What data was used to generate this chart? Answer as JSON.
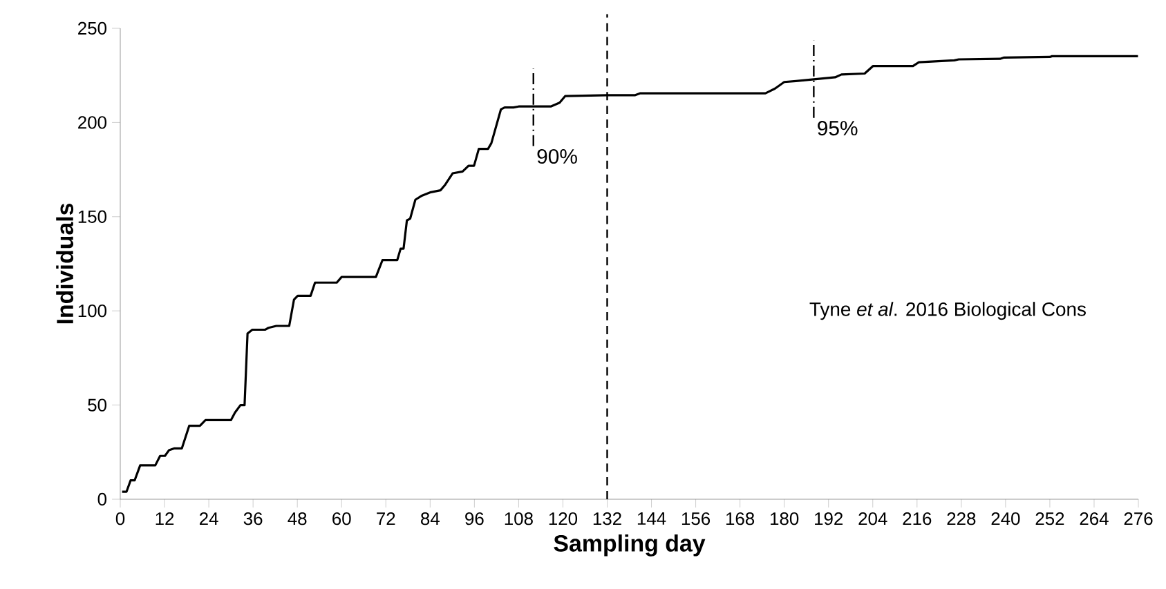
{
  "chart_data": {
    "type": "line",
    "xlabel": "Sampling day",
    "ylabel": "Individuals",
    "color": "#000000",
    "x": [
      0.5,
      1.7,
      2.8,
      3.9,
      5.4,
      9.5,
      10.8,
      12.1,
      13.2,
      14.7,
      16.7,
      18.7,
      21.6,
      23.1,
      30,
      31.1,
      32.6,
      33.7,
      34.5,
      35.8,
      39.3,
      40.2,
      42.3,
      45.8,
      47.1,
      48.1,
      51.6,
      52.8,
      58.7,
      60,
      69.3,
      71.1,
      75.1,
      76,
      76.8,
      77.7,
      78.6,
      80,
      81.6,
      82.9,
      84.2,
      86.8,
      88.1,
      90.1,
      92.8,
      94.4,
      95.9,
      97.2,
      99.7,
      100.6,
      103.2,
      104.2,
      106.6,
      108,
      116.7,
      119.1,
      120.6,
      132,
      139.6,
      141,
      174.9,
      177.5,
      180,
      183.2,
      188.5,
      193.8,
      195.5,
      201.8,
      204.1,
      214.9,
      216.5,
      226.1,
      227.3,
      238.5,
      239.6,
      252,
      252.6,
      275.9
    ],
    "values": [
      4,
      4,
      10,
      10,
      18,
      18,
      23,
      23,
      26,
      27,
      27,
      39,
      39,
      42,
      42,
      46,
      50,
      50,
      88,
      90,
      90,
      91,
      92,
      92,
      106,
      108,
      108,
      115,
      115,
      118,
      118,
      127,
      127,
      133,
      133,
      148,
      149,
      159,
      161,
      162,
      163,
      164,
      167,
      173,
      174,
      177,
      177,
      186,
      186,
      189,
      207,
      208,
      208,
      208.5,
      208.5,
      210.5,
      214,
      214.5,
      214.5,
      215.5,
      215.5,
      218,
      221.5,
      222,
      223,
      224,
      225.5,
      226,
      230,
      230,
      232,
      233,
      233.5,
      233.8,
      234.5,
      234.8,
      235.2,
      235.2
    ],
    "xlim": [
      0,
      276
    ],
    "ylim": [
      0,
      250
    ],
    "xticks": [
      0,
      12,
      24,
      36,
      48,
      60,
      72,
      84,
      96,
      108,
      120,
      132,
      144,
      156,
      168,
      180,
      192,
      204,
      216,
      228,
      240,
      252,
      264,
      276
    ],
    "yticks": [
      0,
      50,
      100,
      150,
      200,
      250
    ],
    "ref_lines": [
      {
        "axis": "x",
        "value": 132,
        "line_style": "dashed"
      }
    ],
    "annotations": [
      {
        "text": "90%",
        "x": 112,
        "y": 208
      },
      {
        "text": "95%",
        "x": 188,
        "y": 223
      },
      "Tyne *et al*. 2016 Biological Cons"
    ]
  }
}
